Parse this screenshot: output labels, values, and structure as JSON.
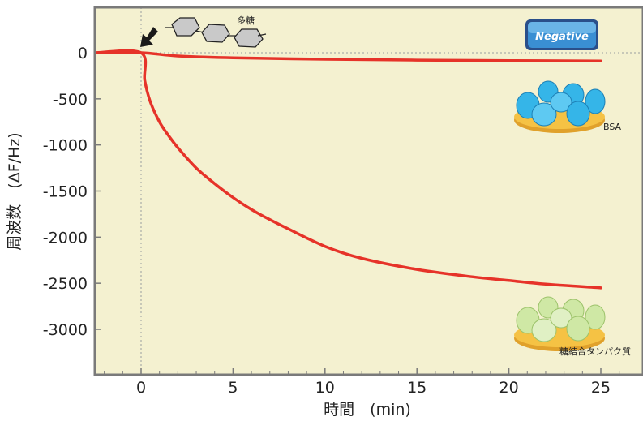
{
  "chart_data": {
    "type": "line",
    "xlabel": "時間　(min)",
    "ylabel": "周波数　(ΔF/Hz)",
    "xlim": [
      -2.5,
      27
    ],
    "ylim": [
      -3500,
      500
    ],
    "x_ticks": [
      0,
      5,
      10,
      15,
      20,
      25
    ],
    "y_ticks": [
      0,
      -500,
      -1000,
      -1500,
      -2000,
      -2500,
      -3000
    ],
    "x_tick_labels": [
      "0",
      "5",
      "10",
      "15",
      "20",
      "25"
    ],
    "y_tick_labels": [
      "0",
      "-500",
      "-1000",
      "-1500",
      "-2000",
      "-2500",
      "-3000"
    ],
    "grid": false,
    "series": [
      {
        "name": "BSA",
        "color": "#e63329",
        "x": [
          -2.5,
          0,
          2,
          5,
          10,
          15,
          20,
          25
        ],
        "y": [
          0,
          0,
          -35,
          -55,
          -70,
          -80,
          -85,
          -90
        ]
      },
      {
        "name": "糖結合タンパク質",
        "color": "#e63329",
        "x": [
          -2.5,
          0,
          0.2,
          0.5,
          1,
          1.5,
          2,
          3,
          4,
          5,
          6,
          7,
          8,
          10,
          12,
          15,
          18,
          20,
          22,
          25
        ],
        "y": [
          0,
          0,
          -300,
          -530,
          -750,
          -900,
          -1030,
          -1250,
          -1420,
          -1570,
          -1700,
          -1810,
          -1910,
          -2100,
          -2230,
          -2350,
          -2430,
          -2470,
          -2510,
          -2550
        ]
      }
    ],
    "annotations": {
      "polysaccharide": "多糖",
      "negative": "Negative",
      "bsa": "BSA",
      "glycoprotein": "糖結合タンパク質"
    }
  },
  "colors": {
    "plot_bg": "#f4f1d0",
    "frame": "#7a7a7a",
    "curve": "#e63329",
    "bsa_blob": "#35b5e8",
    "glyco_blob": "#cfe8a5",
    "disc": "#f5c244",
    "negative_bg": "#1f5fa0"
  },
  "icons": {
    "arrow": "injection-arrow-icon",
    "polysaccharide": "hexagon-chain-icon",
    "bsa": "bsa-protein-cluster-icon",
    "glyco": "glycoprotein-cluster-icon",
    "negative": "negative-badge-icon"
  }
}
